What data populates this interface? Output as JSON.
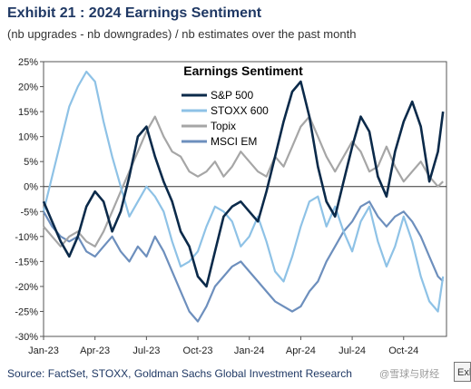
{
  "header": {
    "title": "Exhibit 21 : 2024 Earnings Sentiment",
    "subtitle": "(nb upgrades - nb downgrades) / nb estimates over the past month"
  },
  "footer": {
    "source": "Source: FactSet, STOXX, Goldman Sachs Global Investment Research",
    "watermark": "@雪球与财经",
    "corner_text": "Exl"
  },
  "chart_data": {
    "type": "line",
    "title": "Earnings Sentiment",
    "xlabel": "",
    "ylabel": "",
    "ylim": [
      -30,
      25
    ],
    "yticks": [
      25,
      20,
      15,
      10,
      5,
      0,
      -5,
      -10,
      -15,
      -20,
      -25,
      -30
    ],
    "ytick_labels": [
      "25%",
      "20%",
      "15%",
      "10%",
      "5%",
      "0%",
      "-5%",
      "-10%",
      "-15%",
      "-20%",
      "-25%",
      "-30%"
    ],
    "xlim": [
      0,
      23.5
    ],
    "xticks": [
      0,
      3,
      6,
      9,
      12,
      15,
      18,
      21
    ],
    "xtick_labels": [
      "Jan-23",
      "Apr-23",
      "Jul-23",
      "Oct-23",
      "Jan-24",
      "Apr-24",
      "Jul-24",
      "Oct-24"
    ],
    "grid": false,
    "legend_position": "top-center",
    "series": [
      {
        "name": "S&P 500",
        "color": "#0b2a4a",
        "x": [
          0,
          0.5,
          1,
          1.5,
          2,
          2.5,
          3,
          3.5,
          4,
          4.5,
          5,
          5.5,
          6,
          6.5,
          7,
          7.5,
          8,
          8.5,
          9,
          9.5,
          10,
          10.5,
          11,
          11.5,
          12,
          12.5,
          13,
          13.5,
          14,
          14.5,
          15,
          15.5,
          16,
          16.5,
          17,
          17.5,
          18,
          18.5,
          19,
          19.5,
          20,
          20.5,
          21,
          21.5,
          22,
          22.5,
          23,
          23.3
        ],
        "values": [
          -3,
          -7,
          -11,
          -14,
          -10,
          -4,
          -1,
          -3,
          -9,
          -5,
          2,
          10,
          12,
          6,
          1,
          -3,
          -9,
          -12,
          -18,
          -20,
          -13,
          -6,
          -4,
          -3,
          -5,
          -7,
          -1,
          6,
          13,
          19,
          21,
          14,
          4,
          -3,
          -6,
          1,
          8,
          14,
          11,
          2,
          -2,
          7,
          13,
          17,
          12,
          1,
          7,
          15
        ]
      },
      {
        "name": "STOXX 600",
        "color": "#8ec2e6",
        "x": [
          0,
          0.5,
          1,
          1.5,
          2,
          2.5,
          3,
          3.5,
          4,
          4.5,
          5,
          5.5,
          6,
          6.5,
          7,
          7.5,
          8,
          8.5,
          9,
          9.5,
          10,
          10.5,
          11,
          11.5,
          12,
          12.5,
          13,
          13.5,
          14,
          14.5,
          15,
          15.5,
          16,
          16.5,
          17,
          17.5,
          18,
          18.5,
          19,
          19.5,
          20,
          20.5,
          21,
          21.5,
          22,
          22.5,
          23,
          23.3
        ],
        "values": [
          -5,
          2,
          9,
          16,
          20,
          23,
          21,
          13,
          6,
          0,
          -6,
          -3,
          0,
          -2,
          -5,
          -11,
          -16,
          -15,
          -13,
          -8,
          -4,
          -5,
          -7,
          -12,
          -10,
          -6,
          -11,
          -17,
          -19,
          -14,
          -8,
          -3,
          -2,
          -8,
          -4,
          -9,
          -13,
          -7,
          -4,
          -11,
          -16,
          -12,
          -6,
          -11,
          -18,
          -23,
          -25,
          -18
        ]
      },
      {
        "name": "Topix",
        "color": "#a6a6a6",
        "x": [
          0,
          0.5,
          1,
          1.5,
          2,
          2.5,
          3,
          3.5,
          4,
          4.5,
          5,
          5.5,
          6,
          6.5,
          7,
          7.5,
          8,
          8.5,
          9,
          9.5,
          10,
          10.5,
          11,
          11.5,
          12,
          12.5,
          13,
          13.5,
          14,
          14.5,
          15,
          15.5,
          16,
          16.5,
          17,
          17.5,
          18,
          18.5,
          19,
          19.5,
          20,
          20.5,
          21,
          21.5,
          22,
          22.5,
          23,
          23.3
        ],
        "values": [
          -8,
          -10,
          -12,
          -10,
          -9,
          -11,
          -12,
          -9,
          -5,
          -1,
          3,
          7,
          11,
          14,
          10,
          7,
          6,
          3,
          2,
          3,
          5,
          2,
          4,
          7,
          5,
          3,
          2,
          6,
          4,
          8,
          12,
          14,
          10,
          6,
          3,
          6,
          9,
          7,
          3,
          4,
          8,
          4,
          1,
          3,
          5,
          2,
          0,
          1
        ]
      },
      {
        "name": "MSCI EM",
        "color": "#6d8fbd",
        "x": [
          0,
          0.5,
          1,
          1.5,
          2,
          2.5,
          3,
          3.5,
          4,
          4.5,
          5,
          5.5,
          6,
          6.5,
          7,
          7.5,
          8,
          8.5,
          9,
          9.5,
          10,
          10.5,
          11,
          11.5,
          12,
          12.5,
          13,
          13.5,
          14,
          14.5,
          15,
          15.5,
          16,
          16.5,
          17,
          17.5,
          18,
          18.5,
          19,
          19.5,
          20,
          20.5,
          21,
          21.5,
          22,
          22.5,
          23,
          23.3
        ],
        "values": [
          -5,
          -8,
          -10,
          -11,
          -10,
          -13,
          -14,
          -12,
          -10,
          -13,
          -15,
          -12,
          -14,
          -10,
          -13,
          -17,
          -21,
          -25,
          -27,
          -24,
          -20,
          -18,
          -16,
          -15,
          -17,
          -19,
          -21,
          -23,
          -24,
          -25,
          -24,
          -21,
          -19,
          -15,
          -12,
          -9,
          -7,
          -4,
          -3,
          -6,
          -8,
          -6,
          -5,
          -7,
          -10,
          -14,
          -18,
          -19
        ]
      }
    ]
  }
}
